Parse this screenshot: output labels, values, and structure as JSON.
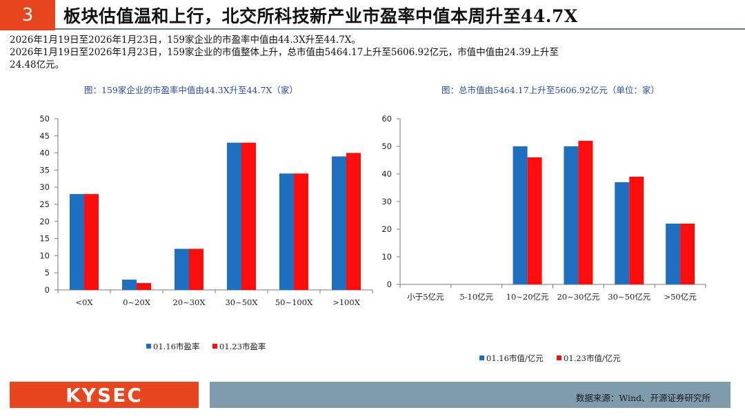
{
  "header": {
    "section_number": "3",
    "title": "板块估值温和上行，北交所科技新产业市盈率中值本周升至44.7X"
  },
  "summary": [
    "2026年1月19日至2026年1月23日，159家企业的市盈率中值由44.3X升至44.7X。",
    "2026年1月19日至2026年1月23日，159家企业的市值整体上升，总市值由5464.17上升至5606.92亿元，市值中值由24.39上升至",
    "24.48亿元。"
  ],
  "chart_data": [
    {
      "type": "bar",
      "title": "图：159家企业的市盈率中值由44.3X升至44.7X（家）",
      "categories": [
        "<0X",
        "0~20X",
        "20~30X",
        "30~50X",
        "50~100X",
        ">100X"
      ],
      "series": [
        {
          "name": "01.16市盈率",
          "values": [
            28,
            3,
            12,
            43,
            34,
            39
          ]
        },
        {
          "name": "01.23市盈率",
          "values": [
            28,
            2,
            12,
            43,
            34,
            40
          ]
        }
      ],
      "ylim": [
        0,
        50
      ],
      "yticks": [
        0,
        5,
        10,
        15,
        20,
        25,
        30,
        35,
        40,
        45,
        50
      ],
      "xlabel": "",
      "ylabel": "",
      "grid": false,
      "legend": "bottom"
    },
    {
      "type": "bar",
      "title": "图：总市值由5464.17上升至5606.92亿元（单位：家）",
      "categories": [
        "小于5亿元",
        "5-10亿元",
        "10~20亿元",
        "20~30亿元",
        "30~50亿元",
        ">50亿元"
      ],
      "series": [
        {
          "name": "01.16市值/亿元",
          "values": [
            0,
            0,
            50,
            50,
            37,
            22
          ]
        },
        {
          "name": "01.23市值/亿元",
          "values": [
            0,
            0,
            46,
            52,
            39,
            22
          ]
        }
      ],
      "ylim": [
        0,
        60
      ],
      "yticks": [
        0,
        10,
        20,
        30,
        40,
        50,
        60
      ],
      "xlabel": "",
      "ylabel": "",
      "grid": false,
      "legend": "bottom"
    }
  ],
  "colors": {
    "series1": "#1f6fc0",
    "series2": "#ff0d0d",
    "accent": "#e8461e",
    "footer": "#7f9cac"
  },
  "footer": {
    "logo": "KYSEC",
    "source": "数据来源：Wind、开源证券研究所"
  }
}
